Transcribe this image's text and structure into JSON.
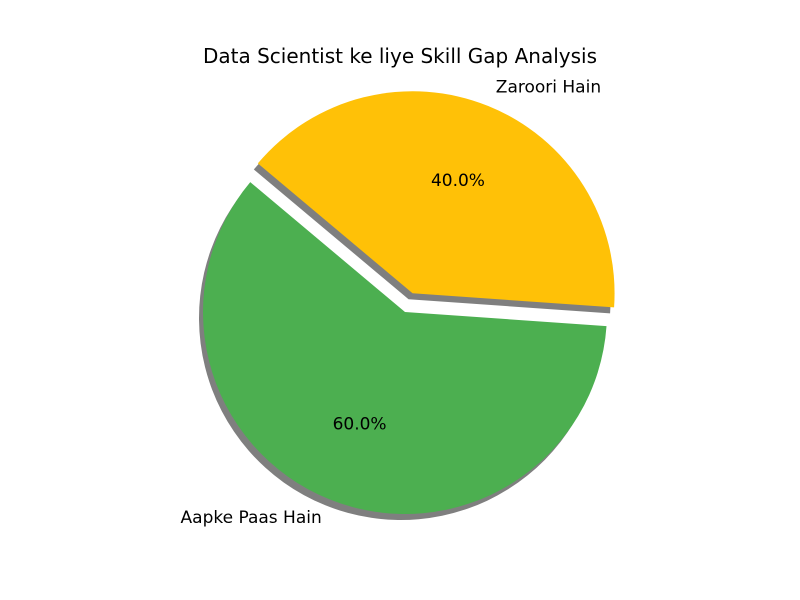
{
  "chart_data": {
    "type": "pie",
    "title": "Data Scientist ke liye Skill Gap Analysis",
    "slices": [
      {
        "label": "Aapke Paas Hain",
        "value": 60,
        "pct_label": "60.0%",
        "color": "#4caf50",
        "explode": 0
      },
      {
        "label": "Zaroori Hain",
        "value": 40,
        "pct_label": "40.0%",
        "color": "#ffc107",
        "explode": 0.1
      }
    ],
    "start_angle": 140,
    "shadow": true,
    "legend": "none"
  }
}
